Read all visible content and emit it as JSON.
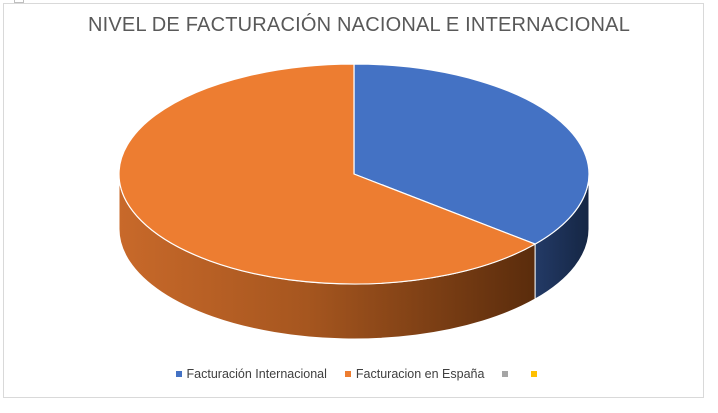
{
  "chart_data": {
    "type": "pie",
    "title": "NIVEL DE FACTURACIÓN NACIONAL E INTERNACIONAL",
    "slices": [
      {
        "label": "Facturación Internacional",
        "value": 0.36,
        "color": "#4472c4"
      },
      {
        "label": "Facturacion en España",
        "value": 0.64,
        "color": "#ed7d31"
      },
      {
        "label": "",
        "value": 0,
        "color": "#a5a5a5"
      },
      {
        "label": "",
        "value": 0,
        "color": "#ffc000"
      }
    ],
    "style": "3d",
    "legend_position": "bottom"
  }
}
